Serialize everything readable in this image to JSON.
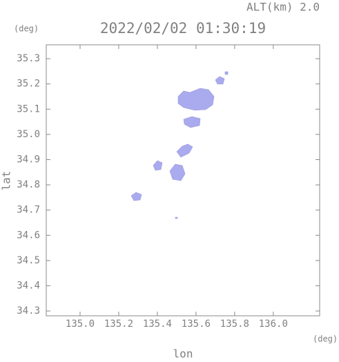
{
  "chart_data": {
    "type": "map",
    "title": "2022/02/02 01:30:19",
    "subtitle": "ALT(km) 2.0",
    "x_label": "lon",
    "y_label": "lat",
    "x_unit": "(deg)",
    "y_unit": "(deg)",
    "xlim": [
      134.825,
      136.24
    ],
    "ylim": [
      34.281,
      35.355
    ],
    "xticks": [
      {
        "value": 135,
        "label": "135.0"
      },
      135.2,
      135.4,
      135.6,
      135.8,
      {
        "value": 136,
        "label": "136.0"
      }
    ],
    "yticks": [
      35.3,
      35.2,
      35.1,
      {
        "value": 35,
        "label": "35.0"
      },
      34.9,
      34.8,
      34.7,
      34.6,
      34.5,
      34.4,
      34.3
    ],
    "color": "#aaaaee"
  }
}
